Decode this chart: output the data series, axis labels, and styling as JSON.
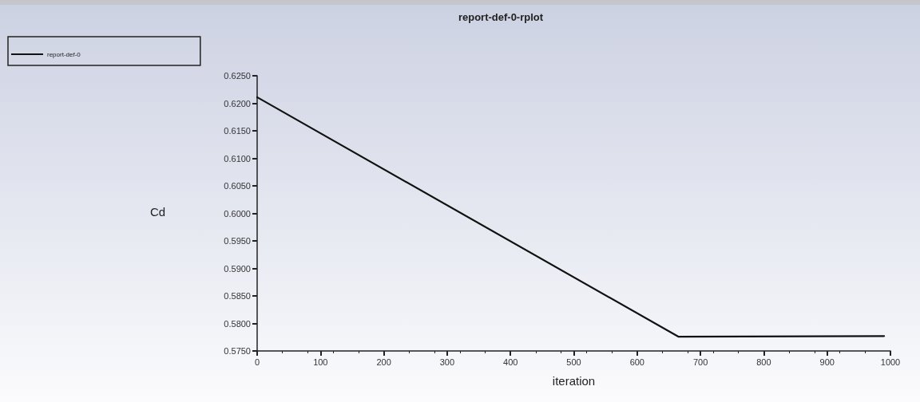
{
  "chart_data": {
    "type": "line",
    "title": "report-def-0-rplot",
    "xlabel": "iteration",
    "ylabel": "Cd",
    "series": [
      {
        "name": "report-def-0",
        "color": "#111111",
        "x": [
          0,
          665,
          990
        ],
        "values": [
          0.6211,
          0.5776,
          0.5777
        ]
      }
    ],
    "xlim": [
      0,
      1000
    ],
    "xticks": [
      0,
      100,
      200,
      300,
      400,
      500,
      600,
      700,
      800,
      900,
      1000
    ],
    "ylim": [
      0.575,
      0.625
    ],
    "yticks": [
      {
        "value": 0.575,
        "label": "0.5750"
      },
      {
        "value": 0.58,
        "label": "0.5800"
      },
      {
        "value": 0.585,
        "label": "0.5850"
      },
      {
        "value": 0.59,
        "label": "0.5900"
      },
      {
        "value": 0.595,
        "label": "0.5950"
      },
      {
        "value": 0.6,
        "label": "0.6000"
      },
      {
        "value": 0.605,
        "label": "0.6050"
      },
      {
        "value": 0.61,
        "label": "0.6100"
      },
      {
        "value": 0.615,
        "label": "0.6150"
      },
      {
        "value": 0.62,
        "label": "0.6200"
      },
      {
        "value": 0.625,
        "label": "0.6250"
      }
    ],
    "grid": false,
    "legend": "top left",
    "marker": "none",
    "line_style": "solid"
  }
}
